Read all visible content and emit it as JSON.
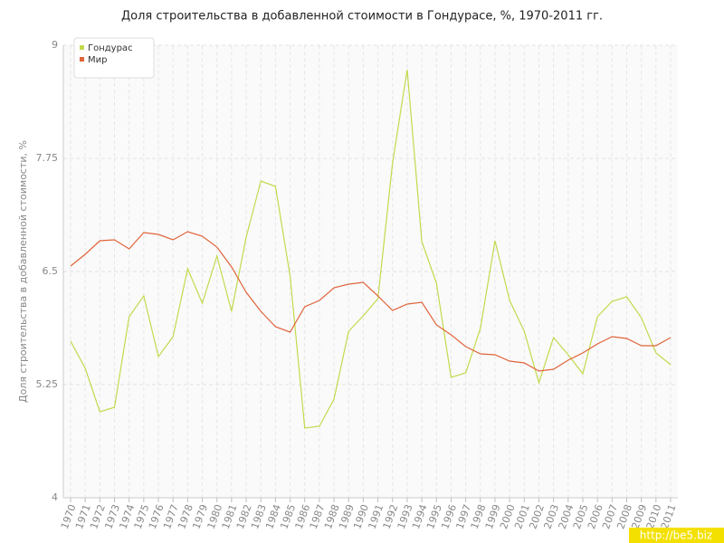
{
  "chart_data": {
    "type": "line",
    "title": "Доля строительства в добавленной стоимости в Гондурасе, %, 1970-2011 гг.",
    "y_label": "Доля строительства в добавленной стоимости, %",
    "categories": [
      "1970",
      "1971",
      "1972",
      "1973",
      "1974",
      "1975",
      "1976",
      "1977",
      "1978",
      "1979",
      "1980",
      "1981",
      "1982",
      "1983",
      "1984",
      "1985",
      "1986",
      "1987",
      "1988",
      "1989",
      "1990",
      "1991",
      "1992",
      "1993",
      "1994",
      "1995",
      "1996",
      "1997",
      "1998",
      "1999",
      "2000",
      "2001",
      "2002",
      "2003",
      "2004",
      "2005",
      "2006",
      "2007",
      "2008",
      "2009",
      "2010",
      "2011"
    ],
    "series": [
      {
        "name": "Гондурас",
        "color": "#c3d94c",
        "values": [
          5.73,
          5.43,
          4.95,
          5.0,
          6.0,
          6.23,
          5.56,
          5.78,
          6.53,
          6.15,
          6.67,
          6.06,
          6.88,
          7.5,
          7.44,
          6.45,
          4.77,
          4.79,
          5.09,
          5.84,
          6.01,
          6.2,
          7.7,
          8.73,
          6.83,
          6.37,
          5.33,
          5.38,
          5.87,
          6.84,
          6.18,
          5.84,
          5.27,
          5.77,
          5.58,
          5.37,
          6.0,
          6.17,
          6.22,
          5.99,
          5.6,
          5.47
        ]
      },
      {
        "name": "Мир",
        "color": "#e0643a",
        "values": [
          6.56,
          6.69,
          6.84,
          6.85,
          6.75,
          6.93,
          6.91,
          6.85,
          6.94,
          6.89,
          6.77,
          6.55,
          6.27,
          6.06,
          5.89,
          5.83,
          6.11,
          6.18,
          6.32,
          6.36,
          6.38,
          6.23,
          6.07,
          6.14,
          6.16,
          5.91,
          5.8,
          5.67,
          5.59,
          5.58,
          5.51,
          5.49,
          5.4,
          5.42,
          5.52,
          5.6,
          5.7,
          5.78,
          5.76,
          5.68,
          5.68,
          5.77
        ]
      }
    ],
    "ylim": [
      4,
      9
    ],
    "yticks": [
      4,
      5.25,
      6.5,
      7.75,
      9
    ],
    "grid": true,
    "legend": "top-left"
  },
  "watermark": "http://be5.biz"
}
